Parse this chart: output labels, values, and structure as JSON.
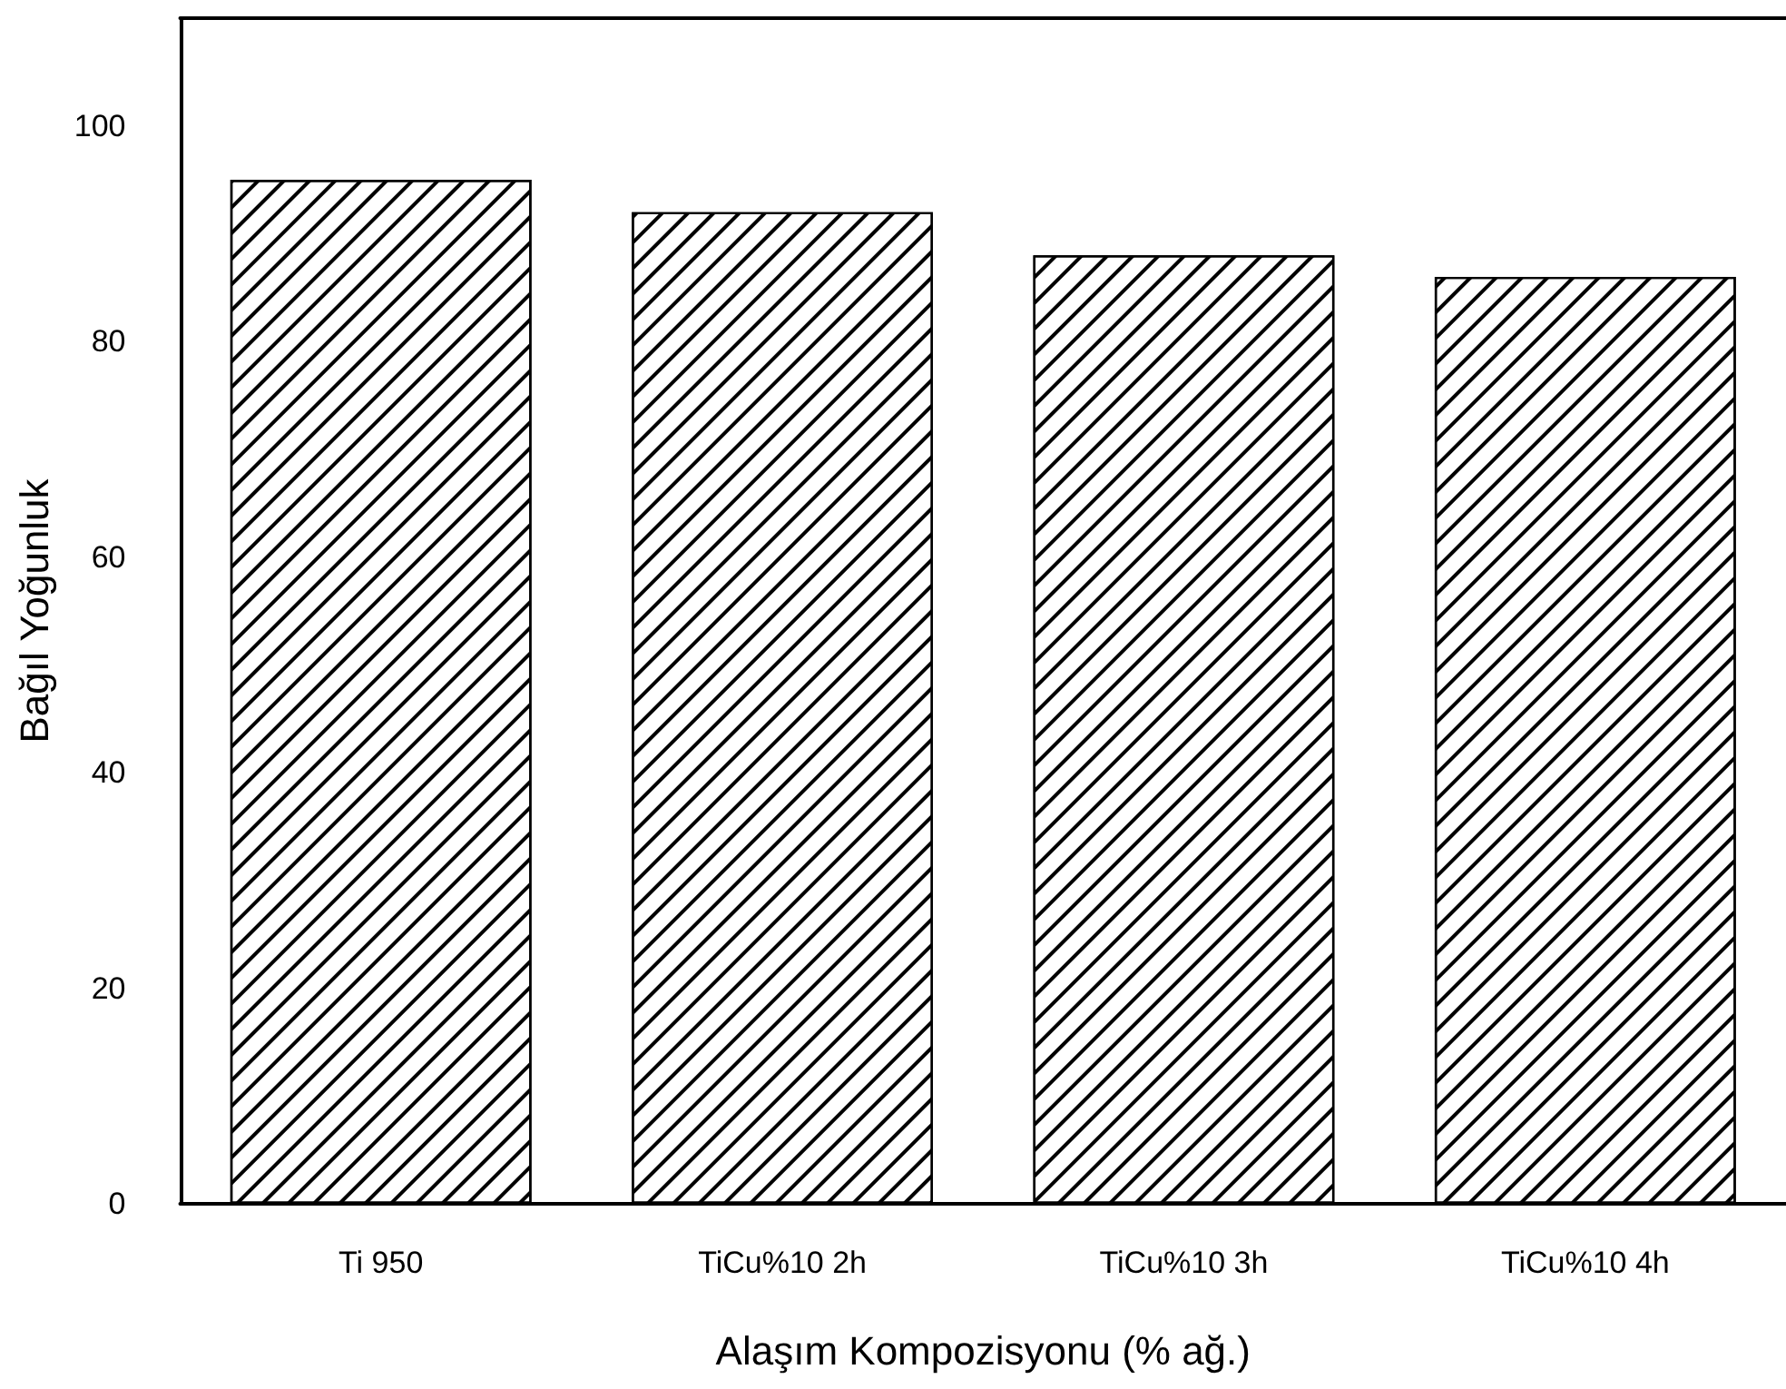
{
  "chart_data": {
    "type": "bar",
    "xlabel": "Alaşım Kompozisyonu (% ağ.)",
    "ylabel": "Bağıl Yoğunluk",
    "categories": [
      "Ti 950",
      "TiCu%10 2h",
      "TiCu%10 3h",
      "TiCu%10 4h"
    ],
    "values": [
      95,
      92,
      88,
      86
    ],
    "color": "#ffffff",
    "ylim": [
      0,
      110
    ],
    "yticks": [
      0,
      20,
      40,
      60,
      80,
      100
    ],
    "grid": false
  }
}
